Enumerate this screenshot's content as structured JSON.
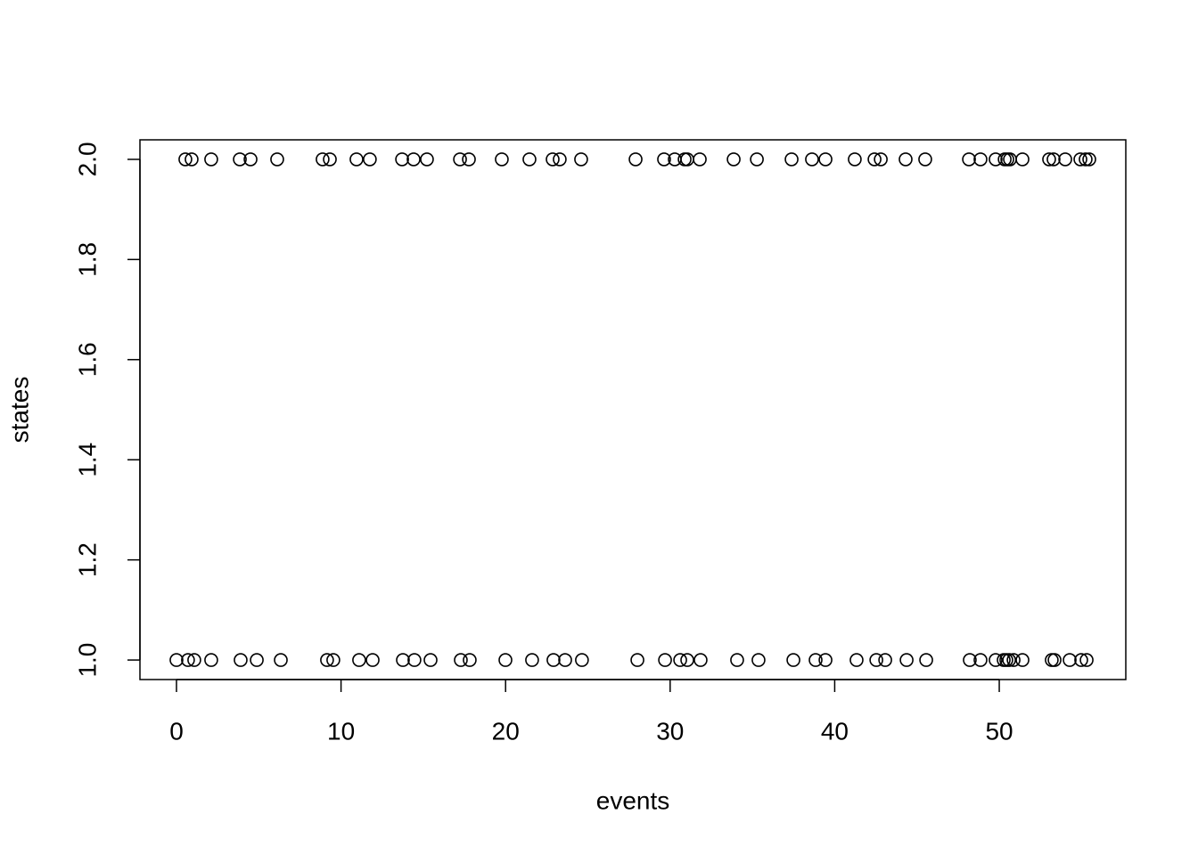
{
  "chart_data": {
    "type": "scatter",
    "x_label": "events",
    "y_label": "states",
    "x": [
      0.54,
      0.92,
      2.11,
      3.85,
      4.5,
      6.12,
      8.88,
      9.32,
      10.94,
      11.75,
      13.71,
      14.41,
      15.22,
      17.23,
      17.77,
      19.77,
      21.45,
      22.86,
      23.29,
      24.59,
      27.9,
      29.63,
      30.28,
      30.88,
      31.04,
      31.8,
      33.86,
      35.27,
      37.38,
      38.62,
      39.44,
      41.22,
      42.42,
      42.8,
      44.31,
      45.5,
      48.16,
      48.86,
      49.78,
      50.33,
      50.49,
      50.65,
      51.41,
      53.03,
      53.3,
      54.01,
      54.93,
      55.25,
      55.47,
      0,
      0.7,
      1.08,
      2.11,
      3.9,
      4.88,
      6.34,
      9.15,
      9.53,
      11.1,
      11.92,
      13.76,
      14.46,
      15.44,
      17.28,
      17.82,
      19.99,
      21.61,
      22.91,
      23.62,
      24.64,
      28.01,
      29.69,
      30.61,
      31.04,
      31.85,
      34.07,
      35.37,
      37.49,
      38.84,
      39.44,
      41.33,
      42.53,
      43.07,
      44.37,
      45.56,
      48.21,
      48.86,
      49.78,
      50.27,
      50.43,
      50.6,
      50.87,
      51.41,
      53.19,
      53.36,
      54.28,
      54.98,
      55.31
    ],
    "y": [
      2,
      2,
      2,
      2,
      2,
      2,
      2,
      2,
      2,
      2,
      2,
      2,
      2,
      2,
      2,
      2,
      2,
      2,
      2,
      2,
      2,
      2,
      2,
      2,
      2,
      2,
      2,
      2,
      2,
      2,
      2,
      2,
      2,
      2,
      2,
      2,
      2,
      2,
      2,
      2,
      2,
      2,
      2,
      2,
      2,
      2,
      2,
      2,
      2,
      1,
      1,
      1,
      1,
      1,
      1,
      1,
      1,
      1,
      1,
      1,
      1,
      1,
      1,
      1,
      1,
      1,
      1,
      1,
      1,
      1,
      1,
      1,
      1,
      1,
      1,
      1,
      1,
      1,
      1,
      1,
      1,
      1,
      1,
      1,
      1,
      1,
      1,
      1,
      1,
      1,
      1,
      1,
      1,
      1,
      1,
      1,
      1,
      1
    ],
    "color": "#000000",
    "xlim": [
      -2.22,
      57.69
    ],
    "ylim": [
      0.961,
      2.039
    ],
    "xticks": [
      0,
      10,
      20,
      30,
      40,
      50
    ],
    "yticks": [
      {
        "value": 1,
        "label": "1.0"
      },
      {
        "value": 1.2,
        "label": "1.2"
      },
      {
        "value": 1.4,
        "label": "1.4"
      },
      {
        "value": 1.6,
        "label": "1.6"
      },
      {
        "value": 1.8,
        "label": "1.8"
      },
      {
        "value": 2,
        "label": "2.0"
      }
    ]
  }
}
